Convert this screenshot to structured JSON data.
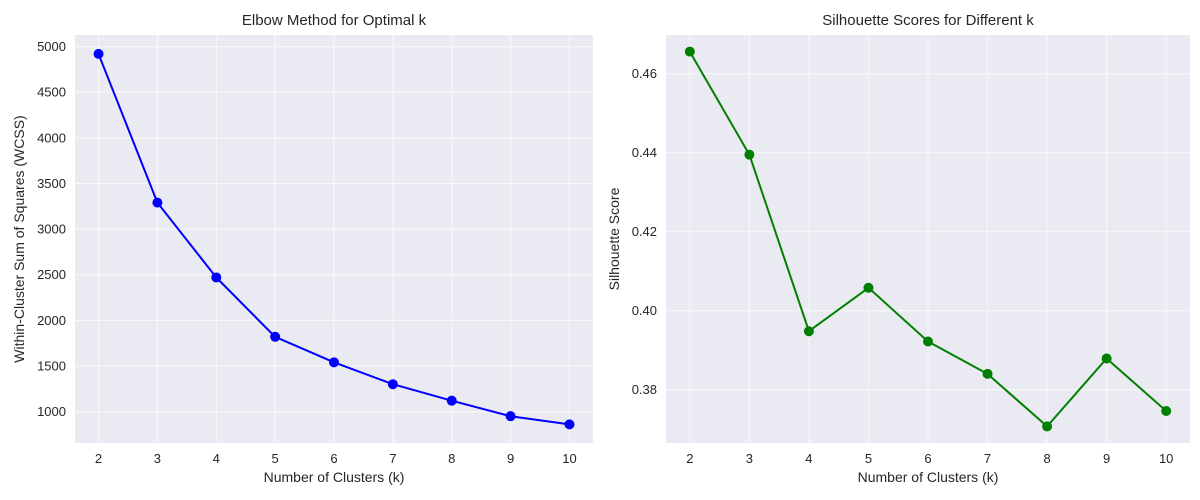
{
  "chart_data": [
    {
      "type": "line",
      "title": "Elbow Method for Optimal k",
      "xlabel": "Number of Clusters (k)",
      "ylabel": "Within-Cluster Sum of Squares (WCSS)",
      "x": [
        2,
        3,
        4,
        5,
        6,
        7,
        8,
        9,
        10
      ],
      "series": [
        {
          "name": "WCSS",
          "color": "#0000ff",
          "marker": "circle",
          "values": [
            4920,
            3290,
            2470,
            1820,
            1540,
            1300,
            1120,
            950,
            860
          ]
        }
      ],
      "xticks": [
        2,
        3,
        4,
        5,
        6,
        7,
        8,
        9,
        10
      ],
      "yticks": [
        1000,
        1500,
        2000,
        2500,
        3000,
        3500,
        4000,
        4500,
        5000
      ],
      "xlim": [
        1.6,
        10.4
      ],
      "ylim": [
        656,
        5127
      ],
      "grid": true,
      "legend": null
    },
    {
      "type": "line",
      "title": "Silhouette Scores for Different k",
      "xlabel": "Number of Clusters (k)",
      "ylabel": "Silhouette Score",
      "x": [
        2,
        3,
        4,
        5,
        6,
        7,
        8,
        9,
        10
      ],
      "series": [
        {
          "name": "Silhouette Score",
          "color": "#008000",
          "marker": "circle",
          "values": [
            0.4656,
            0.4395,
            0.3948,
            0.4058,
            0.3922,
            0.384,
            0.3707,
            0.3879,
            0.3746
          ]
        }
      ],
      "xticks": [
        2,
        3,
        4,
        5,
        6,
        7,
        8,
        9,
        10
      ],
      "yticks": [
        0.38,
        0.4,
        0.42,
        0.44,
        0.46
      ],
      "ytick_labels": [
        "0.38",
        "0.40",
        "0.42",
        "0.44",
        "0.46"
      ],
      "xlim": [
        1.6,
        10.4
      ],
      "ylim": [
        0.3665,
        0.4698
      ],
      "grid": true,
      "legend": null
    }
  ],
  "style": {
    "plot_bg": "#eaeaf2",
    "grid_color": "#ffffff",
    "text_color": "#262626"
  }
}
